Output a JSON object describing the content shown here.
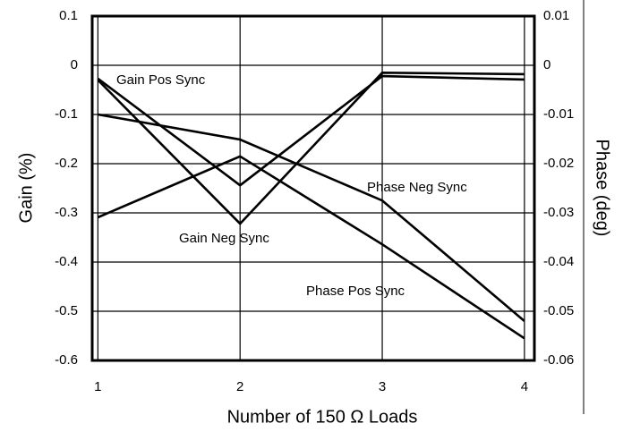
{
  "chart_data": {
    "type": "line",
    "x_label": "Number of 150 Ω Loads",
    "y_label": "Gain (%)",
    "y2_label": "Phase (deg)",
    "x": [
      1,
      2,
      3,
      4
    ],
    "xlim": [
      0.96,
      4.07
    ],
    "xticks": [
      1,
      2,
      3,
      4
    ],
    "ylim": [
      -0.6,
      0.1
    ],
    "yticks": [
      0.1,
      0,
      -0.1,
      -0.2,
      -0.3,
      -0.4,
      -0.5,
      -0.6
    ],
    "y2lim": [
      -0.06,
      0.01
    ],
    "y2ticks": [
      0.01,
      0,
      -0.01,
      -0.02,
      -0.03,
      -0.04,
      -0.05,
      -0.06
    ],
    "grid": true,
    "series": [
      {
        "name": "Gain Pos Sync",
        "color": "#000000",
        "values": [
          -0.027,
          -0.244,
          -0.022,
          -0.029
        ]
      },
      {
        "name": "Gain Neg Sync",
        "color": "#000000",
        "values": [
          -0.03,
          -0.322,
          -0.015,
          -0.018
        ]
      },
      {
        "name": "Phase Neg Sync",
        "color": "#000000",
        "axis": "y2",
        "values": [
          -0.01,
          -0.0151,
          -0.0275,
          -0.052
        ]
      },
      {
        "name": "Phase Pos Sync",
        "color": "#000000",
        "axis": "y2",
        "values": [
          -0.0309,
          -0.0185,
          -0.0364,
          -0.0555
        ]
      }
    ]
  }
}
